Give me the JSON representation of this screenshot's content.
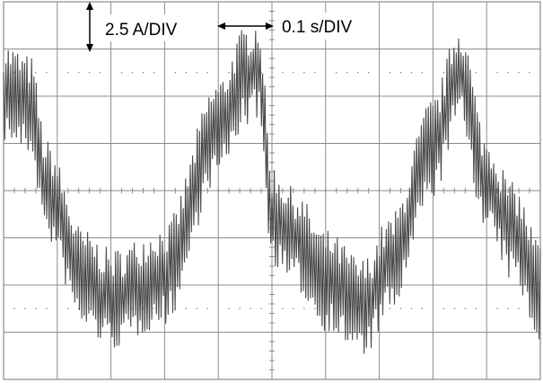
{
  "chart_data": {
    "type": "line",
    "title": "",
    "xlabel": "",
    "ylabel": "",
    "grid": true,
    "grid_divisions": {
      "x": 10,
      "y": 8
    },
    "scale_labels": {
      "vertical": "2.5 A/DIV",
      "horizontal": "0.1 s/DIV"
    },
    "xlim": [
      0,
      10
    ],
    "ylim": [
      -4,
      4
    ],
    "trace_color": "#4a4a4a",
    "grid_color": "#8c8c8c",
    "series": [
      {
        "envelope_x": [
          0,
          0.5,
          0.8,
          1.5,
          2.0,
          3.0,
          4.0,
          4.5,
          4.75,
          5.0,
          5.4,
          6.0,
          6.7,
          7.2,
          8.0,
          8.5,
          9.0,
          9.5,
          10
        ],
        "envelope_y": [
          2.1,
          1.8,
          0.0,
          -1.9,
          -2.3,
          -1.8,
          1.3,
          2.4,
          2.6,
          -0.5,
          -1.0,
          -1.9,
          -2.5,
          -1.6,
          0.9,
          2.5,
          0.1,
          -0.9,
          -2.1
        ],
        "ripple_amplitude_div": 0.9,
        "ripple_cycles": 230
      }
    ]
  }
}
